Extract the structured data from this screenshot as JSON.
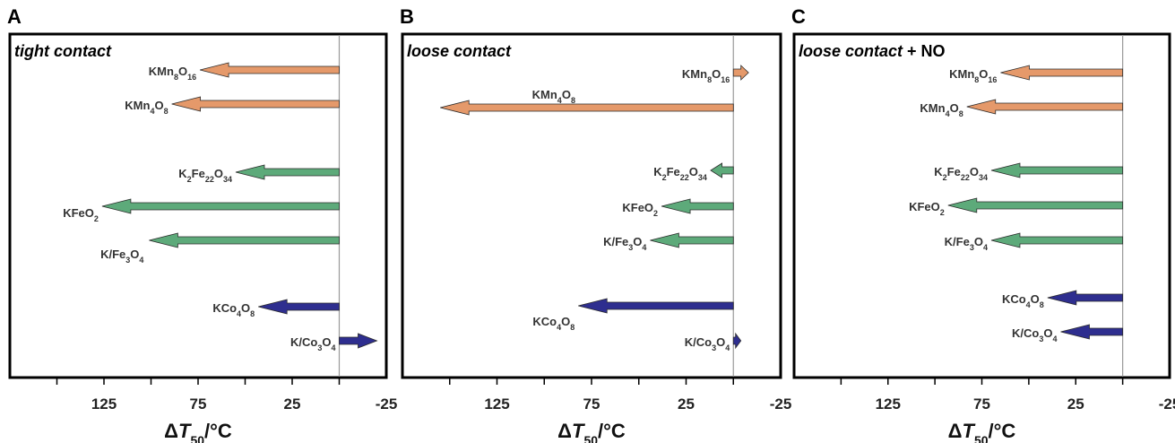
{
  "colors": {
    "manganese": "#E5996A",
    "iron": "#5DAA7A",
    "cobalt": "#2E2E8F",
    "frame": "#000000",
    "zero_line": "#9a9a9a"
  },
  "chart_data": [
    {
      "type": "bar",
      "orientation": "horizontal-arrows",
      "panel": "A",
      "title": "tight contact",
      "title_suffix": "",
      "xlabel": "ΔT50/°C",
      "xlim": [
        175,
        -25
      ],
      "x_ticks": [
        125,
        75,
        25,
        -25
      ],
      "bars": [
        {
          "label": "KMn8O16",
          "value": 74,
          "group": "manganese"
        },
        {
          "label": "KMn4O8",
          "value": 89,
          "group": "manganese"
        },
        {
          "label": "K2Fe22O34",
          "value": 55,
          "group": "iron"
        },
        {
          "label": "KFeO2",
          "value": 126,
          "group": "iron"
        },
        {
          "label": "K/Fe3O4",
          "value": 101,
          "group": "iron"
        },
        {
          "label": "KCo4O8",
          "value": 43,
          "group": "cobalt"
        },
        {
          "label": "K/Co3O4",
          "value": -20,
          "group": "cobalt"
        }
      ]
    },
    {
      "type": "bar",
      "orientation": "horizontal-arrows",
      "panel": "B",
      "title": "loose contact",
      "title_suffix": "",
      "xlabel": "ΔT50/°C",
      "xlim": [
        175,
        -25
      ],
      "x_ticks": [
        125,
        75,
        25,
        -25
      ],
      "bars": [
        {
          "label": "KMn8O16",
          "value": -8,
          "group": "manganese"
        },
        {
          "label": "KMn4O8",
          "value": 155,
          "group": "manganese"
        },
        {
          "label": "K2Fe22O34",
          "value": 12,
          "group": "iron"
        },
        {
          "label": "KFeO2",
          "value": 38,
          "group": "iron"
        },
        {
          "label": "K/Fe3O4",
          "value": 44,
          "group": "iron"
        },
        {
          "label": "KCo4O8",
          "value": 82,
          "group": "cobalt"
        },
        {
          "label": "K/Co3O4",
          "value": -4,
          "group": "cobalt"
        }
      ]
    },
    {
      "type": "bar",
      "orientation": "horizontal-arrows",
      "panel": "C",
      "title": "loose contact",
      "title_suffix": " + NO",
      "xlabel": "ΔT50/°C",
      "xlim": [
        175,
        -25
      ],
      "x_ticks": [
        125,
        75,
        25,
        -25
      ],
      "bars": [
        {
          "label": "KMn8O16",
          "value": 65,
          "group": "manganese"
        },
        {
          "label": "KMn4O8",
          "value": 83,
          "group": "manganese"
        },
        {
          "label": "K2Fe22O34",
          "value": 70,
          "group": "iron"
        },
        {
          "label": "KFeO2",
          "value": 93,
          "group": "iron"
        },
        {
          "label": "K/Fe3O4",
          "value": 70,
          "group": "iron"
        },
        {
          "label": "KCo4O8",
          "value": 40,
          "group": "cobalt"
        },
        {
          "label": "K/Co3O4",
          "value": 33,
          "group": "cobalt"
        }
      ]
    }
  ]
}
